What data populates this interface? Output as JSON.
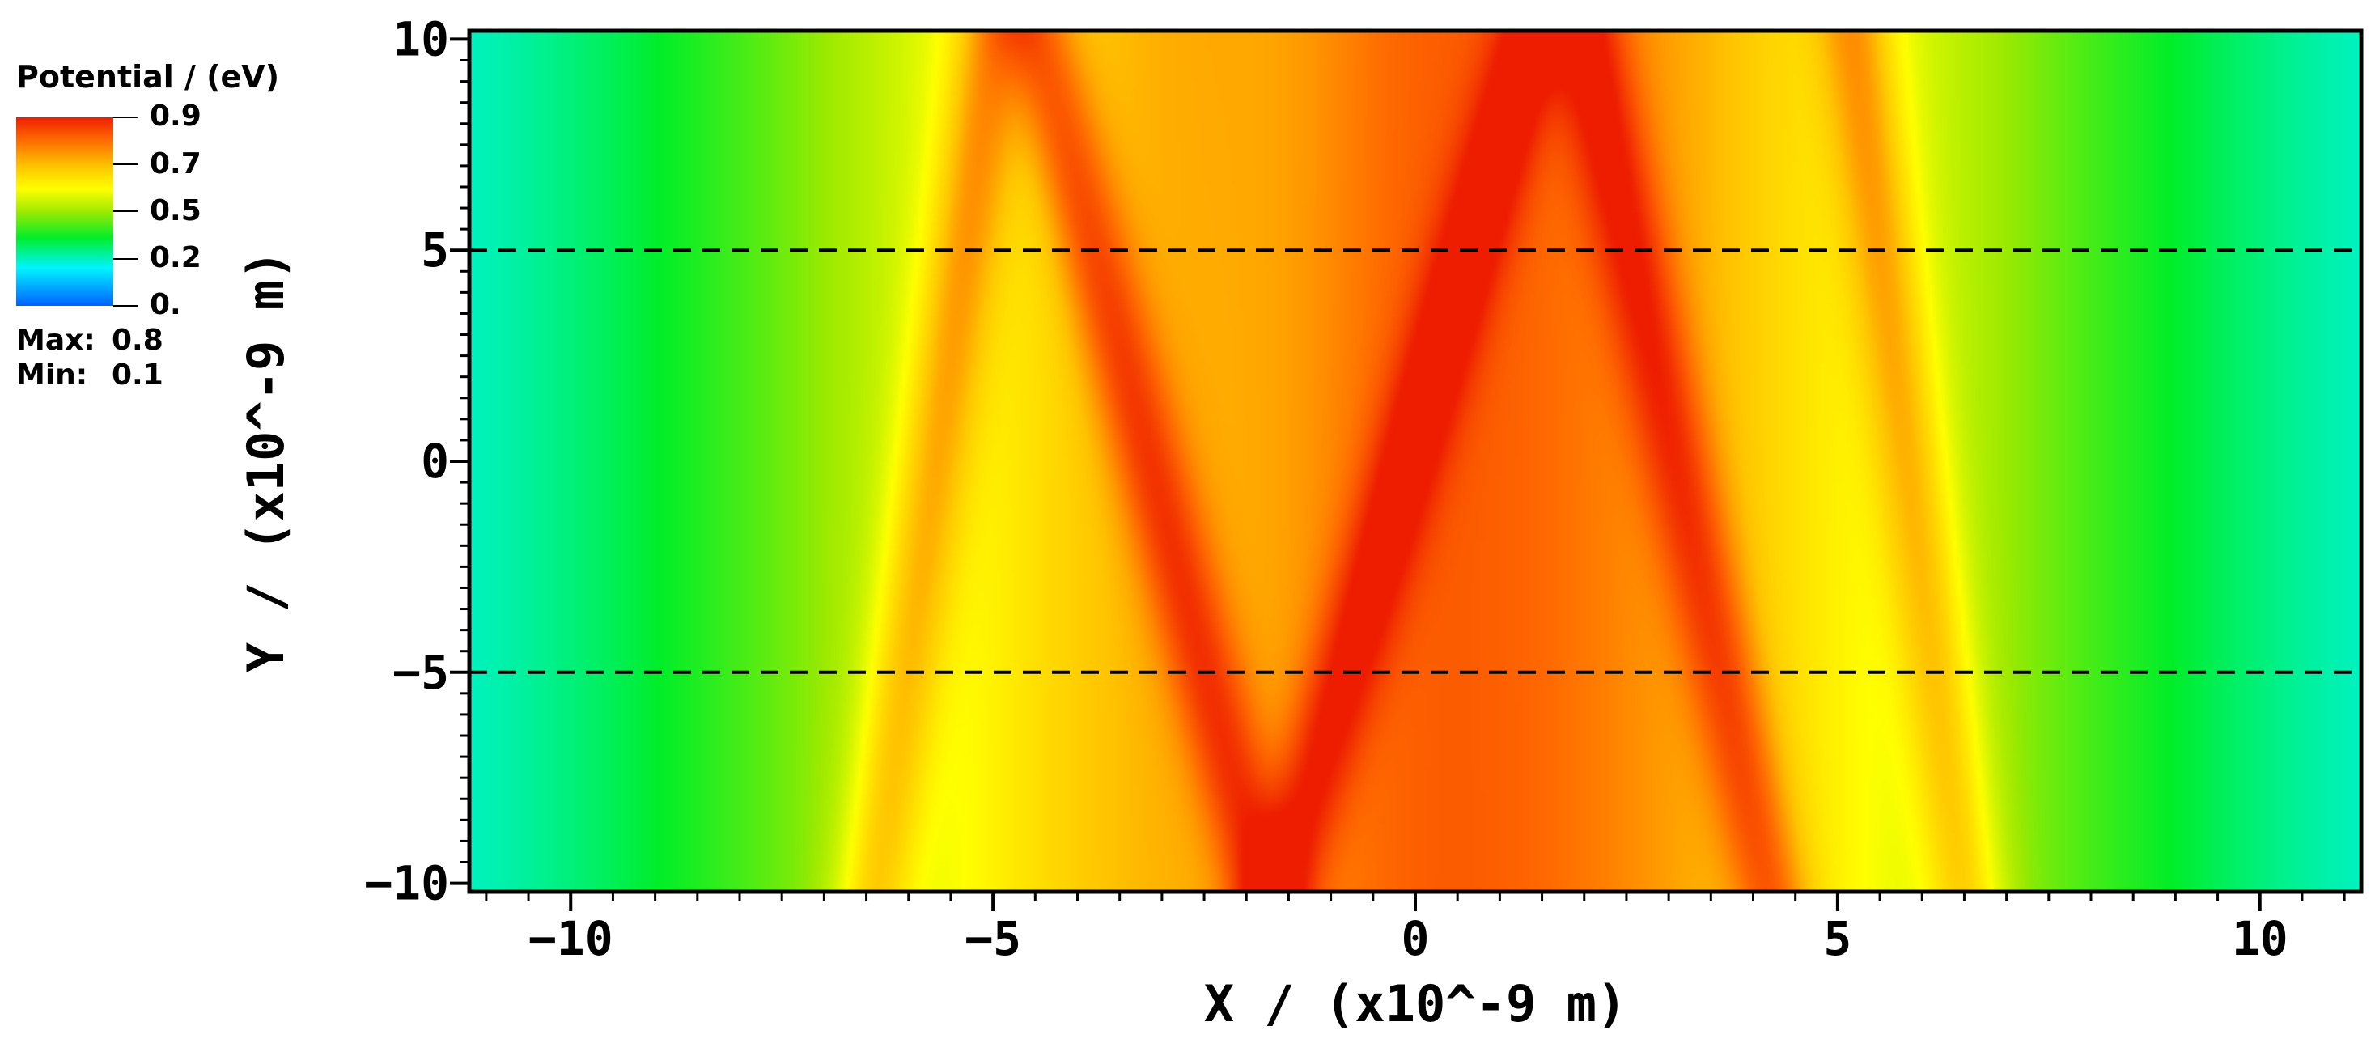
{
  "chart_data": {
    "type": "heatmap",
    "title": "",
    "xlabel": "X / (x10^-9 m)",
    "ylabel": "Y / (x10^-9 m)",
    "xlim": [
      -11.2,
      11.2
    ],
    "ylim": [
      -10.2,
      10.2
    ],
    "x_ticks": [
      -10,
      -5,
      0,
      5,
      10
    ],
    "x_tick_labels": [
      "−10",
      "−5",
      "0",
      "5",
      "10"
    ],
    "y_ticks": [
      10,
      5,
      0,
      -5,
      -10
    ],
    "y_tick_labels": [
      "10",
      "5",
      "0",
      "−5",
      "−10"
    ],
    "grid": false,
    "dashed_lines_y": [
      5,
      -5
    ],
    "colormap": [
      "#0060ff",
      "#00f4ff",
      "#00ee2a",
      "#9eea00",
      "#ffff00",
      "#ffc400",
      "#ff6a00",
      "#ee1d00"
    ],
    "peak_lines": [
      {
        "x_at_y_min": -6.4,
        "x_at_y_max": -5.0
      },
      {
        "x_at_y_min": -1.8,
        "x_at_y_max": -4.5
      },
      {
        "x_at_y_min": -1.6,
        "x_at_y_max": 1.4
      },
      {
        "x_at_y_min": 4.2,
        "x_at_y_max": 2.0
      },
      {
        "x_at_y_min": 6.5,
        "x_at_y_max": 5.2
      }
    ],
    "colorbar": {
      "title": "Potential / (eV)",
      "tick_labels": [
        "0.9",
        "0.7",
        "0.5",
        "0.2",
        "0."
      ],
      "max_label": "Max:",
      "max_value": "0.8",
      "min_label": "Min:",
      "min_value": "0.1"
    }
  }
}
